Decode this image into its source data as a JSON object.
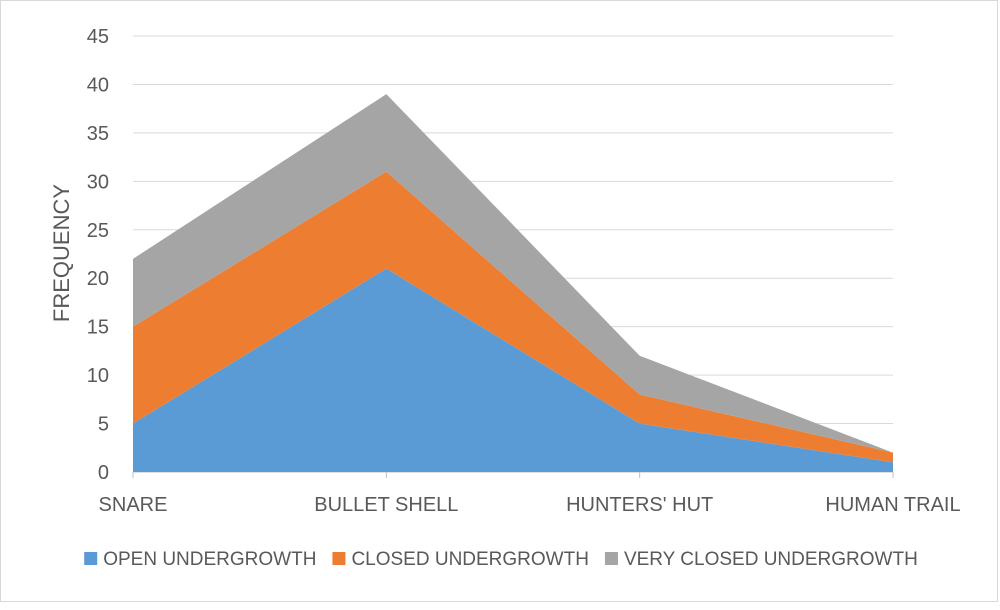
{
  "chart_data": {
    "type": "area",
    "stacked": true,
    "categories": [
      "SNARE",
      "BULLET SHELL",
      "HUNTERS' HUT",
      "HUMAN TRAIL"
    ],
    "series": [
      {
        "name": "OPEN UNDERGROWTH",
        "values": [
          5,
          21,
          5,
          1
        ],
        "color": "#5B9BD5"
      },
      {
        "name": "CLOSED UNDERGROWTH",
        "values": [
          10,
          10,
          3,
          1
        ],
        "color": "#ED7D31"
      },
      {
        "name": "VERY CLOSED UNDERGROWTH",
        "values": [
          7,
          8,
          4,
          0
        ],
        "color": "#A5A5A5"
      }
    ],
    "ylabel": "FREQUENCY",
    "xlabel": "",
    "ylim": [
      0,
      45
    ],
    "yticks": [
      "0",
      "5",
      "10",
      "15",
      "20",
      "25",
      "30",
      "35",
      "40",
      "45"
    ],
    "grid": true,
    "legend": "bottom"
  }
}
